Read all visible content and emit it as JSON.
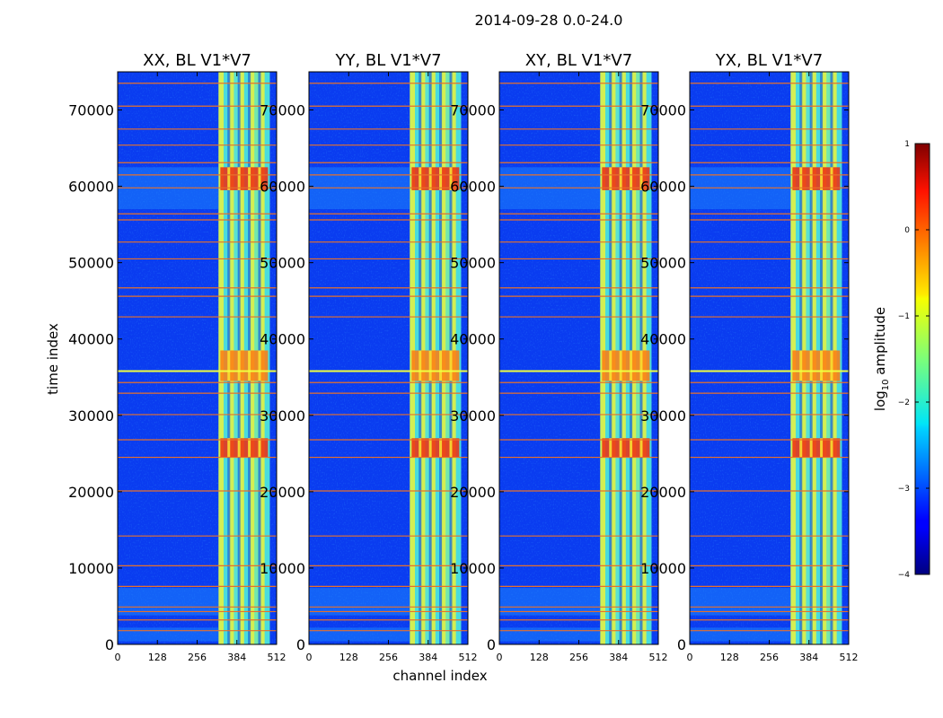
{
  "figure_title": "2014-09-28 0.0-24.0",
  "chart_data": {
    "type": "heatmap",
    "title": "2014-09-28 0.0-24.0",
    "xlabel": "channel index",
    "ylabel": "time index",
    "xlim": [
      0,
      512
    ],
    "ylim": [
      0,
      75000
    ],
    "xticks": [
      0,
      128,
      256,
      384,
      512
    ],
    "yticks": [
      0,
      10000,
      20000,
      30000,
      40000,
      50000,
      60000,
      70000
    ],
    "colormap": "jet",
    "colorbar": {
      "label": "log10 amplitude",
      "label_main": "log",
      "label_sub": "10",
      "label_rest": " amplitude",
      "range": [
        -4,
        1
      ],
      "ticks": [
        1,
        0,
        -1,
        -2,
        -3,
        -4
      ],
      "tick_labels": [
        "1",
        "0",
        "−1",
        "−2",
        "−3",
        "−4"
      ]
    },
    "panels": [
      {
        "name": "XX",
        "title": "XX, BL V1*V7",
        "bright_band_channels": [
          325,
          490
        ]
      },
      {
        "name": "YY",
        "title": "YY, BL V1*V7",
        "bright_band_channels": [
          325,
          490
        ]
      },
      {
        "name": "XY",
        "title": "XY, BL V1*V7",
        "bright_band_channels": [
          325,
          490
        ]
      },
      {
        "name": "YX",
        "title": "YX, BL V1*V7",
        "bright_band_channels": [
          325,
          490
        ]
      }
    ],
    "flag_lines_time_index": [
      1800,
      3200,
      4300,
      4900,
      7600,
      10300,
      14200,
      20100,
      24500,
      26800,
      30100,
      32900,
      34300,
      35800,
      42900,
      45600,
      46700,
      50500,
      52700,
      55600,
      56400,
      59800,
      61500,
      63100,
      65400,
      67500,
      70500,
      73500
    ]
  }
}
